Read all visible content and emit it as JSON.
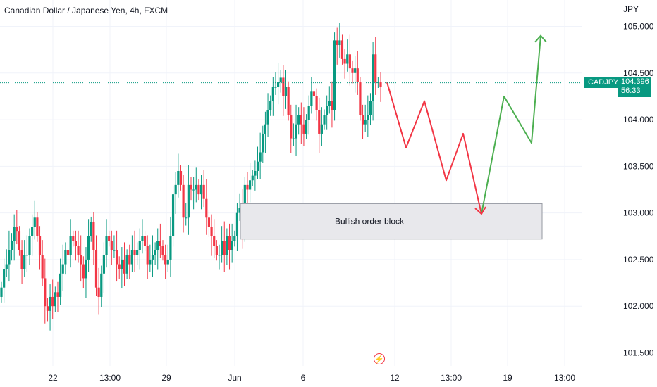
{
  "header": {
    "title": "Canadian Dollar / Japanese Yen, 4h, FXCM",
    "currency": "JPY"
  },
  "price_badge": {
    "symbol": "CADJPY",
    "price": "104.396",
    "countdown": "56:33"
  },
  "colors": {
    "up": "#089981",
    "down": "#f23645",
    "box_fill": "#e8e8ec",
    "box_stroke": "#9598a1",
    "price_line": "#089981"
  },
  "icons": {
    "flash": "lightning-icon"
  },
  "chart_data": {
    "type": "candlestick",
    "title": "Canadian Dollar / Japanese Yen, 4h, FXCM",
    "ylabel": "JPY",
    "ylim": [
      101.3,
      105.35
    ],
    "y_ticks": [
      105.0,
      104.5,
      104.0,
      103.5,
      103.0,
      102.5,
      102.0,
      101.5
    ],
    "y_tick_labels": [
      "105.000",
      "104.500",
      "104.000",
      "103.500",
      "103.000",
      "102.500",
      "102.000",
      "101.500"
    ],
    "x_tick_labels": [
      "22",
      "13:00",
      "29",
      "Jun",
      "6",
      "12",
      "13:00",
      "19",
      "13:00"
    ],
    "candle_closes": [
      102.2,
      102.4,
      102.45,
      102.6,
      102.7,
      102.85,
      102.8,
      102.6,
      102.4,
      102.55,
      102.55,
      102.75,
      102.85,
      102.95,
      102.75,
      102.55,
      102.3,
      102.0,
      101.95,
      102.1,
      102.0,
      102.15,
      102.1,
      102.35,
      102.45,
      102.6,
      102.55,
      102.75,
      102.7,
      102.65,
      102.55,
      102.45,
      102.3,
      102.5,
      102.75,
      102.9,
      102.6,
      102.2,
      102.1,
      102.35,
      102.55,
      102.75,
      102.7,
      102.6,
      102.6,
      102.45,
      102.4,
      102.5,
      102.35,
      102.55,
      102.45,
      102.6,
      102.55,
      102.6,
      102.7,
      102.75,
      102.65,
      102.45,
      102.5,
      102.55,
      102.6,
      102.7,
      102.65,
      102.55,
      102.45,
      102.5,
      102.75,
      103.2,
      103.3,
      103.45,
      103.3,
      102.95,
      102.95,
      103.3,
      103.25,
      103.25,
      103.3,
      103.2,
      103.3,
      103.15,
      102.95,
      102.85,
      102.75,
      102.65,
      102.55,
      102.55,
      102.7,
      102.55,
      102.75,
      102.6,
      102.7,
      102.75,
      103.0,
      103.05,
      102.8,
      103.3,
      103.25,
      103.35,
      103.4,
      103.45,
      103.55,
      103.65,
      103.85,
      103.95,
      104.1,
      104.2,
      104.35,
      104.35,
      104.4,
      104.45,
      104.25,
      104.35,
      104.05,
      103.8,
      103.8,
      103.95,
      104.05,
      103.95,
      103.85,
      104.0,
      104.15,
      104.3,
      104.25,
      104.1,
      103.85,
      103.95,
      104.05,
      104.15,
      104.2,
      104.1,
      104.85,
      104.8,
      104.85,
      104.65,
      104.6,
      104.7,
      104.55,
      104.5,
      104.55,
      104.4,
      104.05,
      103.95,
      104.0,
      104.05,
      104.2,
      104.7,
      104.4,
      104.4,
      104.35
    ],
    "projection": {
      "red_path": [
        104.4,
        103.7,
        104.2,
        103.35,
        103.85,
        102.99
      ],
      "green_path": [
        102.99,
        104.25,
        103.75,
        104.9
      ],
      "order_block": {
        "label": "Bullish order block",
        "top": 103.1,
        "bottom": 102.72
      }
    },
    "current_price": 104.396,
    "grid": true,
    "legend": "none"
  }
}
